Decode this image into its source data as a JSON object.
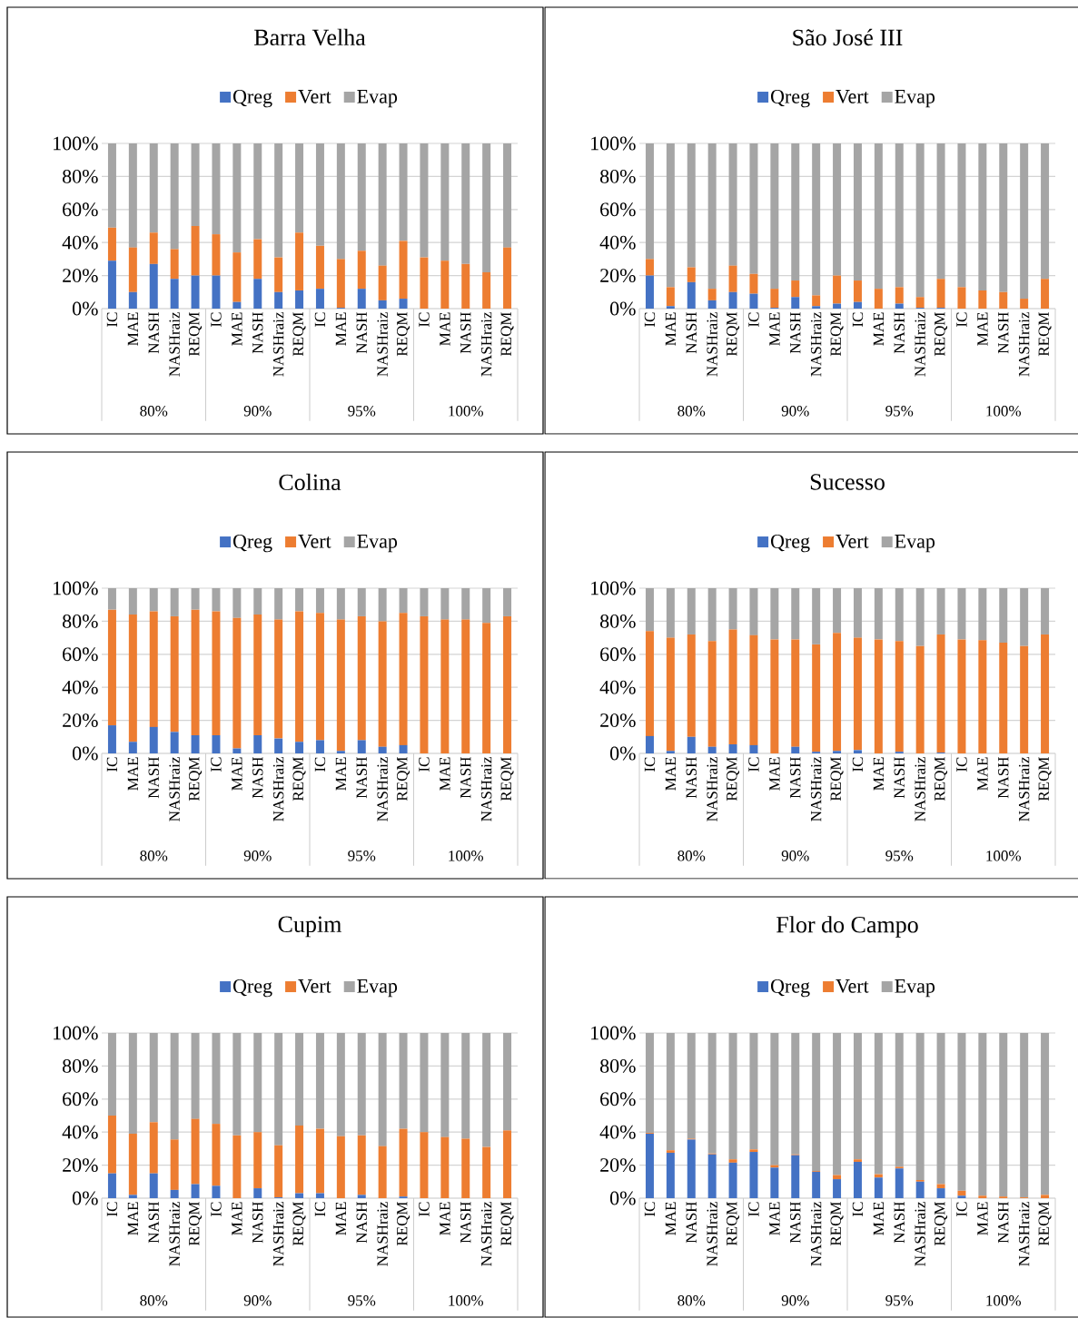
{
  "chart_data": [
    {
      "type": "bar",
      "title": "Barra Velha",
      "stacked": true,
      "grid": "y",
      "legend": "top",
      "categories": [
        "IC",
        "MAE",
        "NASH",
        "NASHraiz",
        "REQM",
        "IC",
        "MAE",
        "NASH",
        "NASHraiz",
        "REQM",
        "IC",
        "MAE",
        "NASH",
        "NASHraiz",
        "REQM",
        "IC",
        "MAE",
        "NASH",
        "NASHraiz",
        "REQM"
      ],
      "annotations": [
        "80%",
        "90%",
        "95%",
        "100%"
      ],
      "ylim": [
        0,
        100
      ],
      "yticks": [
        {
          "value": 0,
          "label": "0%"
        },
        {
          "value": 20,
          "label": "20%"
        },
        {
          "value": 40,
          "label": "40%"
        },
        {
          "value": 60,
          "label": "60%"
        },
        {
          "value": 80,
          "label": "80%"
        },
        {
          "value": 100,
          "label": "100%"
        }
      ],
      "series": [
        {
          "name": "Qreg",
          "color": "#4472c4",
          "values": [
            29,
            10,
            27,
            18,
            20,
            20,
            4,
            18,
            10,
            11,
            12,
            0.5,
            12,
            5,
            6,
            0,
            0,
            0,
            0,
            0
          ]
        },
        {
          "name": "Vert",
          "color": "#ed7d31",
          "values": [
            20,
            27,
            19,
            18,
            30,
            25,
            30,
            24,
            21,
            35,
            26,
            29.5,
            23,
            21,
            35,
            31,
            29,
            27,
            22,
            37
          ]
        },
        {
          "name": "Evap",
          "color": "#a5a5a5",
          "values": [
            51,
            63,
            54,
            64,
            50,
            55,
            66,
            58,
            69,
            54,
            62,
            70,
            65,
            74,
            59,
            69,
            71,
            73,
            78,
            63
          ]
        }
      ]
    },
    {
      "type": "bar",
      "title": "São José III",
      "stacked": true,
      "grid": "y",
      "legend": "top",
      "categories": [
        "IC",
        "MAE",
        "NASH",
        "NASHraiz",
        "REQM",
        "IC",
        "MAE",
        "NASH",
        "NASHraiz",
        "REQM",
        "IC",
        "MAE",
        "NASH",
        "NASHraiz",
        "REQM",
        "IC",
        "MAE",
        "NASH",
        "NASHraiz",
        "REQM"
      ],
      "annotations": [
        "80%",
        "90%",
        "95%",
        "100%"
      ],
      "ylim": [
        0,
        100
      ],
      "yticks": [
        {
          "value": 0,
          "label": "0%"
        },
        {
          "value": 20,
          "label": "20%"
        },
        {
          "value": 40,
          "label": "40%"
        },
        {
          "value": 60,
          "label": "60%"
        },
        {
          "value": 80,
          "label": "80%"
        },
        {
          "value": 100,
          "label": "100%"
        }
      ],
      "series": [
        {
          "name": "Qreg",
          "color": "#4472c4",
          "values": [
            20,
            1.5,
            16,
            5,
            10,
            9,
            0.5,
            7,
            1.5,
            3,
            4,
            0,
            3,
            0.5,
            0.5,
            0,
            0,
            0,
            0,
            0
          ]
        },
        {
          "name": "Vert",
          "color": "#ed7d31",
          "values": [
            10,
            11.5,
            9,
            7,
            16,
            12,
            11.5,
            10,
            6.5,
            17,
            13,
            12,
            10,
            6.5,
            17.5,
            13,
            11,
            10,
            6,
            18
          ]
        },
        {
          "name": "Evap",
          "color": "#a5a5a5",
          "values": [
            70,
            87,
            75,
            88,
            74,
            79,
            88,
            83,
            92,
            80,
            83,
            88,
            87,
            93,
            82,
            87,
            89,
            90,
            94,
            82
          ]
        }
      ]
    },
    {
      "type": "bar",
      "title": "Colina",
      "stacked": true,
      "grid": "y",
      "legend": "top",
      "categories": [
        "IC",
        "MAE",
        "NASH",
        "NASHraiz",
        "REQM",
        "IC",
        "MAE",
        "NASH",
        "NASHraiz",
        "REQM",
        "IC",
        "MAE",
        "NASH",
        "NASHraiz",
        "REQM",
        "IC",
        "MAE",
        "NASH",
        "NASHraiz",
        "REQM"
      ],
      "annotations": [
        "80%",
        "90%",
        "95%",
        "100%"
      ],
      "ylim": [
        0,
        100
      ],
      "yticks": [
        {
          "value": 0,
          "label": "0%"
        },
        {
          "value": 20,
          "label": "20%"
        },
        {
          "value": 40,
          "label": "40%"
        },
        {
          "value": 60,
          "label": "60%"
        },
        {
          "value": 80,
          "label": "80%"
        },
        {
          "value": 100,
          "label": "100%"
        }
      ],
      "series": [
        {
          "name": "Qreg",
          "color": "#4472c4",
          "values": [
            17,
            7,
            16,
            13,
            11,
            11,
            3,
            11,
            9,
            7,
            8,
            1.5,
            8,
            4,
            5,
            0,
            0,
            0,
            0,
            0
          ]
        },
        {
          "name": "Vert",
          "color": "#ed7d31",
          "values": [
            70,
            77,
            70,
            70,
            76,
            75,
            79,
            73,
            72,
            79,
            77,
            79.5,
            75,
            76,
            80,
            83,
            81,
            81,
            79,
            83
          ]
        },
        {
          "name": "Evap",
          "color": "#a5a5a5",
          "values": [
            13,
            16,
            14,
            17,
            13,
            14,
            18,
            16,
            19,
            14,
            15,
            19,
            17,
            20,
            15,
            17,
            19,
            19,
            21,
            17
          ]
        }
      ]
    },
    {
      "type": "bar",
      "title": "Sucesso",
      "stacked": true,
      "grid": "y",
      "legend": "top",
      "categories": [
        "IC",
        "MAE",
        "NASH",
        "NASHraiz",
        "REQM",
        "IC",
        "MAE",
        "NASH",
        "NASHraiz",
        "REQM",
        "IC",
        "MAE",
        "NASH",
        "NASHraiz",
        "REQM",
        "IC",
        "MAE",
        "NASH",
        "NASHraiz",
        "REQM"
      ],
      "annotations": [
        "80%",
        "90%",
        "95%",
        "100%"
      ],
      "ylim": [
        0,
        100
      ],
      "yticks": [
        {
          "value": 0,
          "label": "0%"
        },
        {
          "value": 20,
          "label": "20%"
        },
        {
          "value": 40,
          "label": "40%"
        },
        {
          "value": 60,
          "label": "60%"
        },
        {
          "value": 80,
          "label": "80%"
        },
        {
          "value": 100,
          "label": "100%"
        }
      ],
      "series": [
        {
          "name": "Qreg",
          "color": "#4472c4",
          "values": [
            10.5,
            1.5,
            10,
            4,
            5.5,
            5,
            0,
            4,
            1,
            1.5,
            2,
            0,
            1,
            0,
            0.5,
            0,
            0,
            0,
            0,
            0
          ]
        },
        {
          "name": "Vert",
          "color": "#ed7d31",
          "values": [
            63.5,
            68.5,
            62,
            64,
            69.5,
            66.5,
            69,
            65,
            65,
            71.5,
            68,
            69,
            67,
            65,
            71.5,
            69,
            68.5,
            67,
            65,
            72
          ]
        },
        {
          "name": "Evap",
          "color": "#a5a5a5",
          "values": [
            26,
            30,
            28,
            32,
            25,
            28.5,
            31,
            31,
            34,
            27,
            30,
            31,
            32,
            35,
            28,
            31,
            31.5,
            33,
            35,
            28
          ]
        }
      ]
    },
    {
      "type": "bar",
      "title": "Cupim",
      "stacked": true,
      "grid": "y",
      "legend": "top",
      "categories": [
        "IC",
        "MAE",
        "NASH",
        "NASHraiz",
        "REQM",
        "IC",
        "MAE",
        "NASH",
        "NASHraiz",
        "REQM",
        "IC",
        "MAE",
        "NASH",
        "NASHraiz",
        "REQM",
        "IC",
        "MAE",
        "NASH",
        "NASHraiz",
        "REQM"
      ],
      "annotations": [
        "80%",
        "90%",
        "95%",
        "100%"
      ],
      "ylim": [
        0,
        100
      ],
      "yticks": [
        {
          "value": 0,
          "label": "0%"
        },
        {
          "value": 20,
          "label": "20%"
        },
        {
          "value": 40,
          "label": "40%"
        },
        {
          "value": 60,
          "label": "60%"
        },
        {
          "value": 80,
          "label": "80%"
        },
        {
          "value": 100,
          "label": "100%"
        }
      ],
      "series": [
        {
          "name": "Qreg",
          "color": "#4472c4",
          "values": [
            15,
            2,
            15,
            5,
            8.5,
            7.5,
            0,
            6,
            0.5,
            3,
            3,
            0,
            2,
            0,
            1,
            0,
            0,
            0,
            0,
            0
          ]
        },
        {
          "name": "Vert",
          "color": "#ed7d31",
          "values": [
            35,
            37,
            31,
            30.5,
            39.5,
            37.5,
            38,
            34,
            31.5,
            41,
            39,
            37.5,
            36,
            31.5,
            41,
            40,
            37,
            36,
            31,
            41
          ]
        },
        {
          "name": "Evap",
          "color": "#a5a5a5",
          "values": [
            50,
            61,
            54,
            64.5,
            52,
            55,
            62,
            60,
            68,
            56,
            58,
            62.5,
            62,
            68.5,
            58,
            60,
            63,
            64,
            69,
            59
          ]
        }
      ]
    },
    {
      "type": "bar",
      "title": "Flor do Campo",
      "stacked": true,
      "grid": "y",
      "legend": "top",
      "categories": [
        "IC",
        "MAE",
        "NASH",
        "NASHraiz",
        "REQM",
        "IC",
        "MAE",
        "NASH",
        "NASHraiz",
        "REQM",
        "IC",
        "MAE",
        "NASH",
        "NASHraiz",
        "REQM",
        "IC",
        "MAE",
        "NASH",
        "NASHraiz",
        "REQM"
      ],
      "annotations": [
        "80%",
        "90%",
        "95%",
        "100%"
      ],
      "ylim": [
        0,
        100
      ],
      "yticks": [
        {
          "value": 0,
          "label": "0%"
        },
        {
          "value": 20,
          "label": "20%"
        },
        {
          "value": 40,
          "label": "40%"
        },
        {
          "value": 60,
          "label": "60%"
        },
        {
          "value": 80,
          "label": "80%"
        },
        {
          "value": 100,
          "label": "100%"
        }
      ],
      "series": [
        {
          "name": "Qreg",
          "color": "#4472c4",
          "values": [
            39,
            27.5,
            35.5,
            26.5,
            21.5,
            28,
            18.5,
            26,
            16,
            11.5,
            22,
            12.5,
            18,
            10,
            6,
            1.5,
            0,
            0,
            0,
            0
          ]
        },
        {
          "name": "Vert",
          "color": "#ed7d31",
          "values": [
            0.5,
            1.5,
            0.5,
            0.5,
            2,
            1.5,
            1.5,
            0.5,
            0.5,
            2.5,
            1.5,
            2,
            1,
            1,
            2.5,
            3,
            1.5,
            1,
            0.5,
            2
          ]
        },
        {
          "name": "Evap",
          "color": "#a5a5a5",
          "values": [
            60.5,
            71,
            64,
            73,
            76.5,
            70.5,
            80,
            73.5,
            83.5,
            86,
            76.5,
            85.5,
            81,
            89,
            91.5,
            95.5,
            98.5,
            99,
            99.5,
            98
          ]
        }
      ]
    }
  ]
}
